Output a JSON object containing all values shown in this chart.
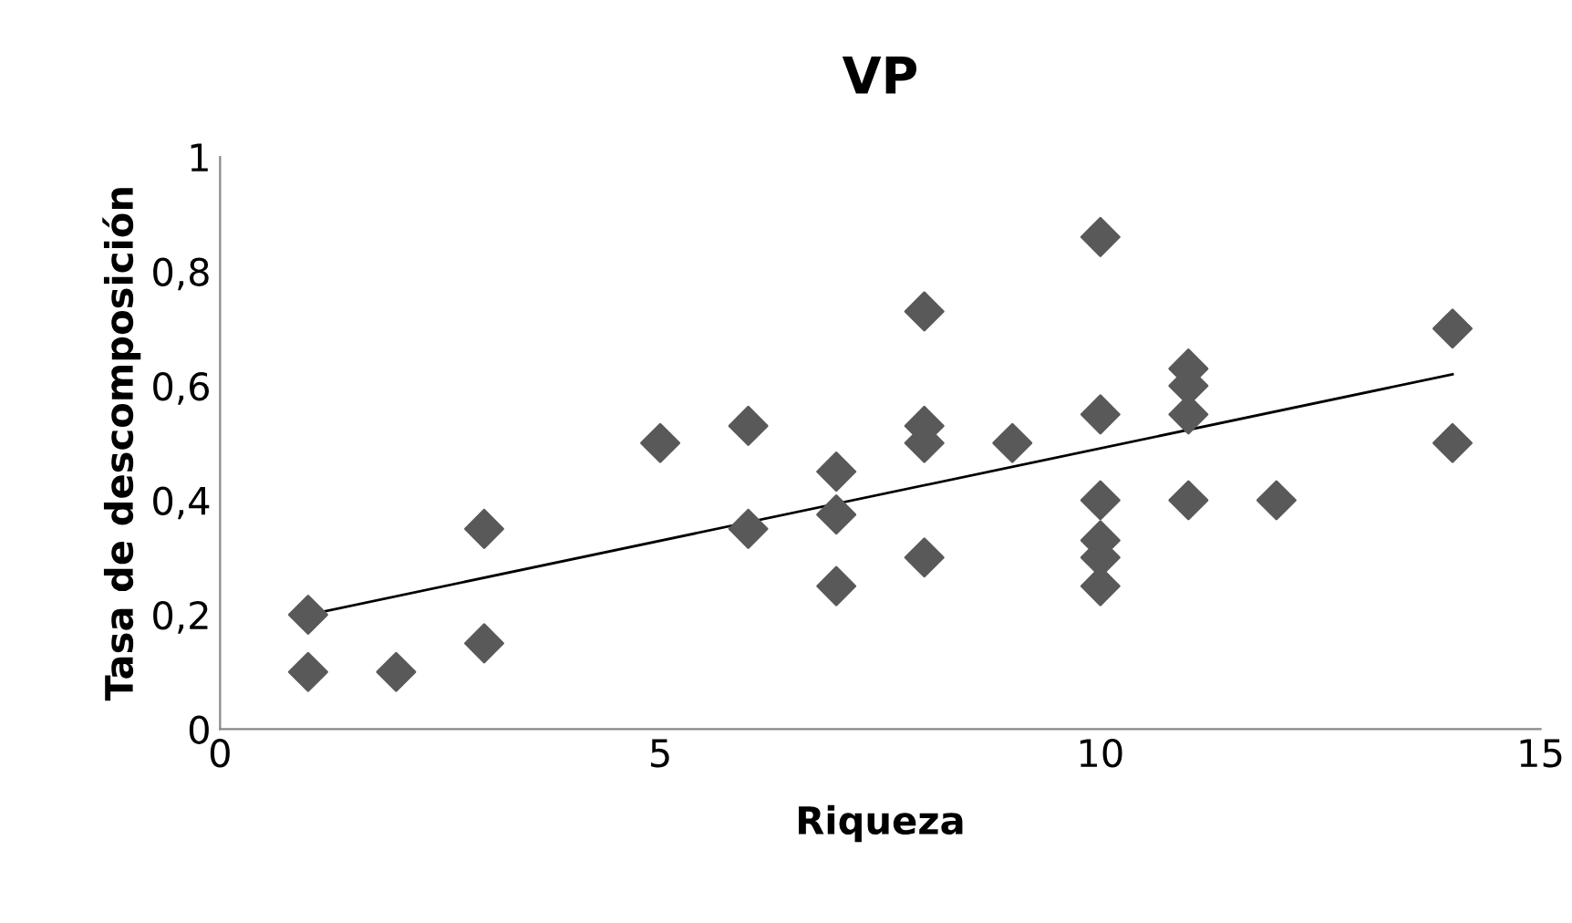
{
  "chart_data": {
    "type": "scatter",
    "title": "VP",
    "xlabel": "Riqueza",
    "ylabel": "Tasa de descomposición",
    "xlim": [
      0,
      15
    ],
    "xticks": [
      0,
      5,
      10,
      15
    ],
    "ylim": [
      0,
      1
    ],
    "yticks": [
      0,
      {
        "value": 0.2,
        "label": "0,2"
      },
      {
        "value": 0.4,
        "label": "0,4"
      },
      {
        "value": 0.6,
        "label": "0,6"
      },
      {
        "value": 0.8,
        "label": "0,8"
      },
      1
    ],
    "grid": false,
    "legend": false,
    "series": [
      {
        "marker": "diamond",
        "color": "#595959",
        "x": [
          1,
          1,
          2,
          3,
          3,
          5,
          6,
          6,
          7,
          7,
          7,
          8,
          8,
          8,
          8,
          9,
          10,
          10,
          10,
          10,
          10,
          10,
          11,
          11,
          11,
          11,
          12,
          14,
          14
        ],
        "values": [
          0.1,
          0.2,
          0.1,
          0.35,
          0.15,
          0.5,
          0.53,
          0.35,
          0.45,
          0.375,
          0.25,
          0.73,
          0.53,
          0.5,
          0.3,
          0.5,
          0.86,
          0.55,
          0.4,
          0.33,
          0.3,
          0.25,
          0.63,
          0.6,
          0.55,
          0.4,
          0.4,
          0.7,
          0.5
        ]
      },
      {
        "type": "line",
        "marker": "none",
        "color": "#000000",
        "x": [
          1,
          14
        ],
        "values": [
          0.2,
          0.62
        ]
      }
    ]
  }
}
